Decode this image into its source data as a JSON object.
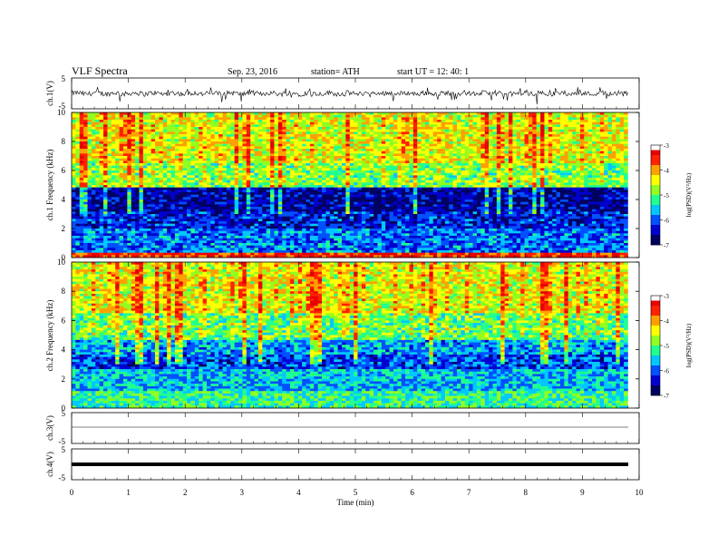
{
  "header": {
    "title": "VLF  Spectra",
    "date": "Sep. 23, 2016",
    "station": "station= ATH",
    "start": "start  UT =   12: 40: 1"
  },
  "colors": {
    "trace": "#000000",
    "frame": "#000000",
    "colormap": [
      "#000060",
      "#0000d0",
      "#0050ff",
      "#00c8ff",
      "#20ff90",
      "#90ff20",
      "#ffff00",
      "#ffa000",
      "#ff2000",
      "#e80000",
      "#ffffff"
    ]
  },
  "chart_data": [
    {
      "type": "line",
      "name": "ch1-voltage",
      "ylabel": "ch.1(V)",
      "ylim": [
        -5,
        5
      ],
      "yticks": [
        "5",
        "-5"
      ],
      "xlim": [
        0,
        10
      ],
      "description_values": "noisy trace fluctuating roughly between -2 and +1.5 V"
    },
    {
      "type": "heatmap",
      "name": "ch1-spectrogram",
      "ylabel": "ch.1  Frequency  (kHz)",
      "ylim": [
        0,
        10
      ],
      "yticks": [
        "0",
        "2",
        "4",
        "6",
        "8",
        "10"
      ],
      "xlim": [
        0,
        9.8
      ],
      "zlim": [
        -7,
        -3
      ],
      "colorbar_label": "log(PSD)(V²/Hz)",
      "colorbar_ticks": [
        "-3",
        "-4",
        "-5",
        "-6",
        "-7"
      ],
      "bands": [
        {
          "fmin": 0,
          "fmax": 0.3,
          "level": -3.5
        },
        {
          "fmin": 0.3,
          "fmax": 2.0,
          "level": -5.9
        },
        {
          "fmin": 2.0,
          "fmax": 3.2,
          "level": -6.3
        },
        {
          "fmin": 3.2,
          "fmax": 4.8,
          "level": -6.6
        },
        {
          "fmin": 4.8,
          "fmax": 6.5,
          "level": -4.9
        },
        {
          "fmin": 6.5,
          "fmax": 10,
          "level": -4.5
        }
      ]
    },
    {
      "type": "heatmap",
      "name": "ch2-spectrogram",
      "ylabel": "ch.2  Frequency  (kHz)",
      "ylim": [
        0,
        10
      ],
      "yticks": [
        "0",
        "2",
        "4",
        "6",
        "8",
        "10"
      ],
      "xlim": [
        0,
        9.8
      ],
      "zlim": [
        -7,
        -3
      ],
      "colorbar_label": "log(PSD)(V²/Hz)",
      "colorbar_ticks": [
        "-3",
        "-4",
        "-5",
        "-6",
        "-7"
      ],
      "bands": [
        {
          "fmin": 0,
          "fmax": 1.2,
          "level": -5.2
        },
        {
          "fmin": 1.2,
          "fmax": 2.6,
          "level": -5.6
        },
        {
          "fmin": 2.6,
          "fmax": 3.6,
          "level": -6.1
        },
        {
          "fmin": 3.6,
          "fmax": 4.6,
          "level": -5.7
        },
        {
          "fmin": 4.6,
          "fmax": 6.5,
          "level": -5.0
        },
        {
          "fmin": 6.5,
          "fmax": 10,
          "level": -4.5
        }
      ]
    },
    {
      "type": "line",
      "name": "ch3-voltage",
      "ylabel": "ch.3(V)",
      "ylim": [
        -5,
        5
      ],
      "yticks": [
        "5",
        "-5"
      ],
      "xlim": [
        0,
        9.8
      ],
      "values_constant": 0
    },
    {
      "type": "line",
      "name": "ch4-voltage",
      "ylabel": "ch.4(V)",
      "ylim": [
        -5,
        5
      ],
      "yticks": [
        "5",
        "-5"
      ],
      "xlim": [
        0,
        9.8
      ],
      "values_constant": 0
    }
  ],
  "xaxis": {
    "label": "Time  (min)",
    "ticks": [
      "0",
      "1",
      "2",
      "3",
      "4",
      "5",
      "6",
      "7",
      "8",
      "9",
      "10"
    ],
    "range": [
      0,
      10
    ]
  }
}
